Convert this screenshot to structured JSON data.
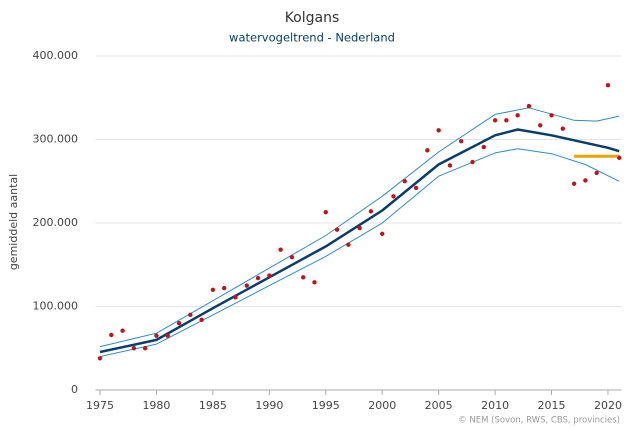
{
  "chart_data": {
    "type": "line",
    "title": "Kolgans",
    "subtitle": "watervogeltrend - Nederland",
    "y_label": "gemiddeld aantal",
    "source": "© NEM (Sovon, RWS, CBS, provincies)",
    "xlim": [
      1974.6,
      2021.2
    ],
    "xticks": [
      1975,
      1980,
      1985,
      1990,
      1995,
      2000,
      2005,
      2010,
      2015,
      2020
    ],
    "ylim": [
      0,
      400000
    ],
    "yticks": [
      0,
      {
        "value": 100000,
        "label": "100.000"
      },
      {
        "value": 200000,
        "label": "200.000"
      },
      {
        "value": 300000,
        "label": "300.000"
      },
      {
        "value": 400000,
        "label": "400.000"
      }
    ],
    "grid": true,
    "series": [
      {
        "style": "band",
        "color": "#2e8bc0",
        "x": [
          1975,
          1980,
          1985,
          1990,
          1995,
          2000,
          2005,
          2010,
          2013,
          2017,
          2019,
          2021
        ],
        "values": [
          52000,
          68000,
          107000,
          146000,
          185000,
          232000,
          285000,
          330000,
          338000,
          323000,
          322000,
          328000
        ]
      },
      {
        "style": "band",
        "color": "#2e8bc0",
        "x": [
          1975,
          1980,
          1985,
          1990,
          1995,
          2000,
          2005,
          2010,
          2012,
          2015,
          2018,
          2021
        ],
        "values": [
          40000,
          55000,
          90000,
          125000,
          160000,
          200000,
          256000,
          284000,
          289000,
          283000,
          270000,
          250000
        ]
      },
      {
        "style": "trend",
        "color": "#0a3d6b",
        "x": [
          1975,
          1980,
          1985,
          1990,
          1995,
          2000,
          2005,
          2010,
          2012,
          2015,
          2020,
          2021
        ],
        "values": [
          45500,
          60000,
          98000,
          135000,
          172000,
          215000,
          270000,
          305000,
          312000,
          305000,
          290000,
          286000
        ]
      },
      {
        "style": "reference",
        "color": "#f0a000",
        "x": [
          2017,
          2021
        ],
        "values": [
          280000,
          280000
        ]
      },
      {
        "style": "points",
        "color": "#c0141c",
        "x": [
          1975,
          1976,
          1977,
          1978,
          1979,
          1980,
          1981,
          1982,
          1983,
          1984,
          1985,
          1986,
          1987,
          1988,
          1989,
          1990,
          1991,
          1992,
          1993,
          1994,
          1995,
          1996,
          1997,
          1998,
          1999,
          2000,
          2001,
          2002,
          2003,
          2004,
          2005,
          2006,
          2007,
          2008,
          2009,
          2010,
          2011,
          2012,
          2013,
          2014,
          2015,
          2016,
          2017,
          2018,
          2019,
          2020,
          2021
        ],
        "values": [
          38000,
          66000,
          71000,
          50000,
          50000,
          65000,
          65000,
          80000,
          90000,
          84000,
          120000,
          122000,
          111000,
          125000,
          134000,
          137000,
          168000,
          159000,
          135000,
          129000,
          213000,
          192000,
          174000,
          194000,
          214000,
          187000,
          232000,
          250000,
          242000,
          287000,
          311000,
          269000,
          298000,
          273000,
          291000,
          323000,
          323000,
          329000,
          340000,
          317000,
          329000,
          313000,
          247000,
          251000,
          260000,
          365000,
          278000
        ]
      }
    ]
  }
}
